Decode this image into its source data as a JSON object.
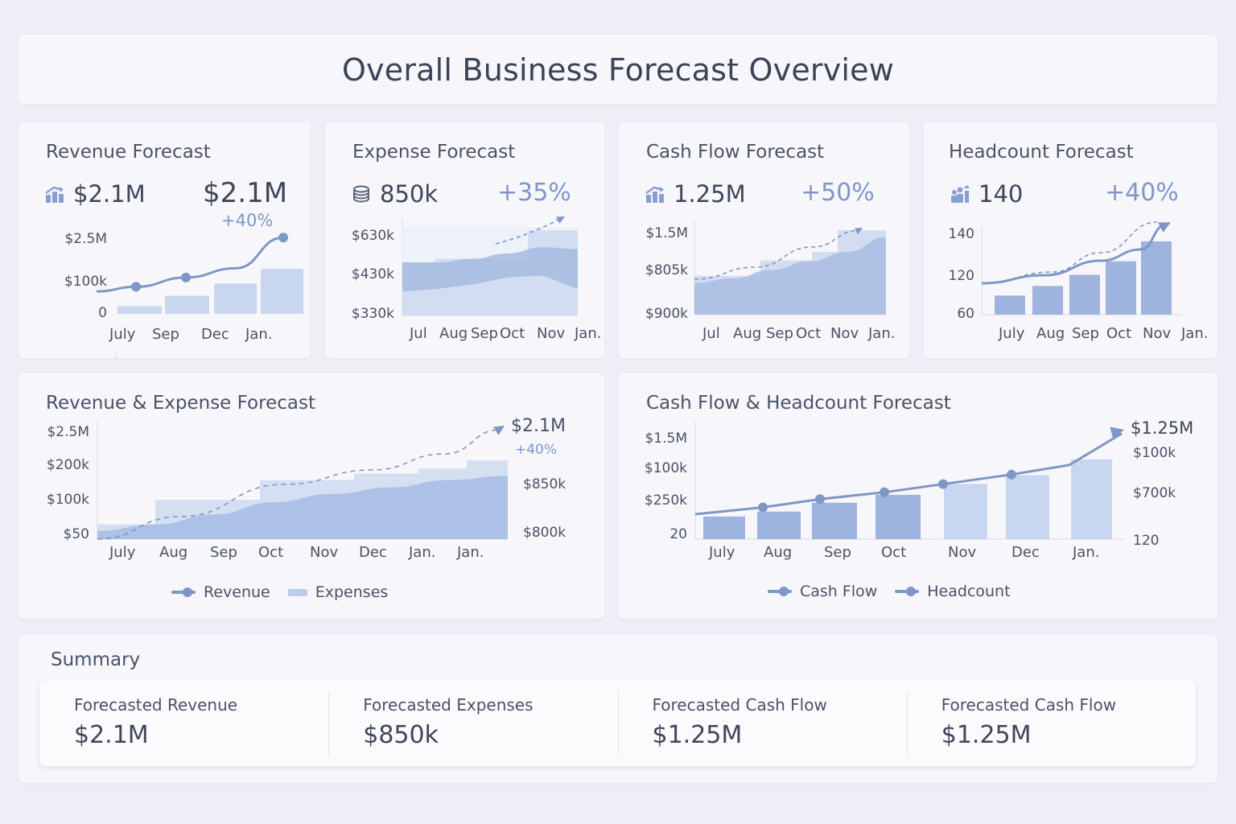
{
  "page_title": "Overall Business Forecast Overview",
  "colors": {
    "accent": "#7f96c6",
    "bar_dark": "#9fb3df",
    "bar_light": "#c9d6ef",
    "background": "#eeeff6",
    "card": "#f7f7fb"
  },
  "cards": {
    "revenue": {
      "title": "Revenue Forecast",
      "icon": "bar-chart-up-icon",
      "kpi_value": "$2.1M",
      "kpi_big": "$2.1M",
      "kpi_pct": "+40%"
    },
    "expense": {
      "title": "Expense Forecast",
      "icon": "coin-stack-icon",
      "kpi_value": "850k",
      "kpi_pct": "+35%"
    },
    "cashflow": {
      "title": "Cash Flow Forecast",
      "icon": "bar-chart-up-icon",
      "kpi_value": "1.25M",
      "kpi_pct": "+50%"
    },
    "headcount": {
      "title": "Headcount Forecast",
      "icon": "people-icon",
      "kpi_value": "140",
      "kpi_pct": "+40%"
    },
    "rev_exp": {
      "title": "Revenue & Expense Forecast",
      "legend": [
        "Revenue",
        "Expenses"
      ]
    },
    "cash_head": {
      "title": "Cash Flow & Headcount Forecast",
      "legend": [
        "Cash Flow",
        "Headcount"
      ]
    }
  },
  "chart_data": [
    {
      "id": "revenue",
      "type": "bar",
      "title": "Revenue Forecast",
      "y_ticks": [
        "$2.5M",
        "$100k",
        "0"
      ],
      "x_ticks": [
        "July",
        "Sep",
        "Dec",
        "Jan."
      ],
      "series": [
        {
          "name": "Revenue bars",
          "type": "bar",
          "values": [
            0.12,
            0.28,
            0.47,
            0.7
          ]
        },
        {
          "name": "Revenue trend",
          "type": "line",
          "values": [
            0.22,
            0.3,
            0.46,
            0.62,
            1.15
          ],
          "markers": [
            1,
            2,
            4
          ]
        }
      ],
      "ylim": [
        0,
        1.2
      ]
    },
    {
      "id": "expense",
      "type": "area",
      "title": "Expense Forecast",
      "y_ticks": [
        "$630k",
        "$430k",
        "$330k"
      ],
      "x_ticks": [
        "Jul",
        "Aug",
        "Sep",
        "Oct",
        "Nov",
        "Jan."
      ],
      "series": [
        {
          "name": "Expense steps",
          "type": "bar",
          "values": [
            0.6,
            0.64,
            0.64,
            0.91,
            0.91,
            0.96
          ]
        },
        {
          "name": "Expense band upper",
          "type": "area",
          "values": [
            0.6,
            0.6,
            0.64,
            0.7,
            0.77,
            0.75
          ]
        },
        {
          "name": "Expense band lower",
          "type": "area",
          "values": [
            0.27,
            0.3,
            0.35,
            0.43,
            0.45,
            0.3
          ]
        },
        {
          "name": "Expense trend",
          "type": "line",
          "style": "dashed",
          "values": [
            0.95,
            1.05,
            1.25
          ]
        }
      ],
      "ylim": [
        0,
        1.3
      ]
    },
    {
      "id": "cashflow",
      "type": "area",
      "title": "Cash Flow Forecast",
      "y_ticks": [
        "$1.5M",
        "$805k",
        "$900k"
      ],
      "x_ticks": [
        "Jul",
        "Aug",
        "Sep",
        "Oct",
        "Nov",
        "Jan."
      ],
      "series": [
        {
          "name": "Cash flow steps",
          "type": "bar",
          "values": [
            0.45,
            0.45,
            0.63,
            0.63,
            0.73,
            0.92,
            0.98
          ]
        },
        {
          "name": "Cash flow area",
          "type": "area",
          "values": [
            0.37,
            0.42,
            0.52,
            0.62,
            0.73,
            0.9
          ]
        },
        {
          "name": "Cash flow trend",
          "type": "line",
          "style": "dashed",
          "values": [
            0.45,
            0.6,
            0.8,
            1.0
          ]
        }
      ],
      "ylim": [
        0,
        1.05
      ]
    },
    {
      "id": "headcount",
      "type": "bar",
      "title": "Headcount Forecast",
      "y_ticks": [
        "140",
        "120",
        "60"
      ],
      "x_ticks": [
        "July",
        "Aug",
        "Sep",
        "Oct",
        "Nov",
        "Jan."
      ],
      "series": [
        {
          "name": "Headcount bars",
          "type": "bar",
          "values": [
            0.24,
            0.36,
            0.5,
            0.67,
            0.92
          ]
        },
        {
          "name": "Headcount trend",
          "type": "line",
          "values": [
            0.4,
            0.5,
            0.65,
            0.85,
            1.15
          ]
        },
        {
          "name": "Headcount projection",
          "type": "line",
          "style": "dashed",
          "values": [
            0.4,
            0.52,
            0.72,
            1.0,
            1.15
          ]
        }
      ],
      "ylim": [
        0,
        1.2
      ]
    },
    {
      "id": "rev_exp",
      "type": "area",
      "title": "Revenue & Expense Forecast",
      "y_ticks": [
        "$2.5M",
        "$200k",
        "$100k",
        "$50"
      ],
      "y_ticks_right": [
        "$850k",
        "$800k"
      ],
      "x_ticks": [
        "July",
        "Aug",
        "Sep",
        "Oct",
        "Nov",
        "Dec",
        "Jan.",
        "Jan."
      ],
      "annotation": {
        "value": "$2.1M",
        "pct": "+40%"
      },
      "series": [
        {
          "name": "Expenses",
          "type": "area",
          "values": [
            0.18,
            0.48,
            0.48,
            0.72,
            0.72,
            0.8,
            0.86,
            0.96
          ]
        },
        {
          "name": "Revenue",
          "type": "area",
          "values": [
            0.1,
            0.18,
            0.3,
            0.45,
            0.55,
            0.63,
            0.72,
            0.77
          ]
        },
        {
          "name": "Trend",
          "type": "line",
          "style": "dashed",
          "values": [
            0.05,
            0.25,
            0.48,
            0.67,
            0.77,
            0.92,
            1.1,
            1.4
          ]
        }
      ],
      "ylim": [
        0,
        1.5
      ]
    },
    {
      "id": "cash_head",
      "type": "bar",
      "title": "Cash Flow & Headcount Forecast",
      "y_ticks": [
        "$1.5M",
        "$100k",
        "$250k",
        "20"
      ],
      "y_ticks_right": [
        "$100k",
        "$700k",
        "120"
      ],
      "x_ticks": [
        "July",
        "Aug",
        "Sep",
        "Oct",
        "Nov",
        "Dec",
        "Jan."
      ],
      "annotation": {
        "value": "$1.25M"
      },
      "series": [
        {
          "name": "Cash Flow",
          "type": "bar",
          "values": [
            0.23,
            0.28,
            0.37,
            0.45,
            0.56,
            0.65,
            0.81
          ]
        },
        {
          "name": "Headcount",
          "type": "line",
          "values": [
            0.45,
            0.5,
            0.56,
            0.61,
            0.67,
            0.74,
            0.81,
            1.04
          ],
          "markers": [
            1,
            2,
            3,
            4,
            5
          ]
        }
      ],
      "ylim": [
        0,
        1.1
      ]
    }
  ],
  "summary": {
    "title": "Summary",
    "items": [
      {
        "label": "Forecasted Revenue",
        "value": "$2.1M"
      },
      {
        "label": "Forecasted Expenses",
        "value": "$850k"
      },
      {
        "label": "Forecasted Cash Flow",
        "value": "$1.25M"
      },
      {
        "label": "Forecasted Cash Flow",
        "value": "$1.25M"
      }
    ]
  }
}
